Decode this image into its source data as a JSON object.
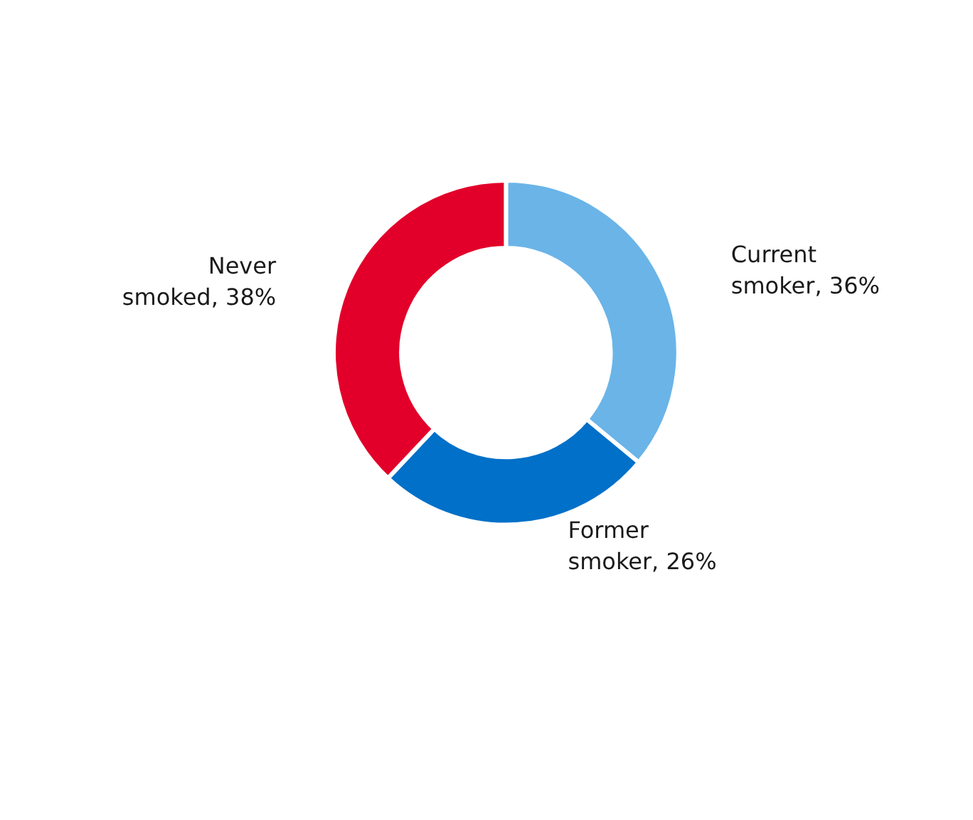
{
  "chart_data": {
    "type": "donut",
    "categories": [
      "Current smoker",
      "Former smoker",
      "Never smoked"
    ],
    "values": [
      36,
      26,
      38
    ],
    "value_labels": [
      "36%",
      "26%",
      "38%"
    ],
    "colors": [
      "#6ab4e8",
      "#0070c8",
      "#e2002a"
    ],
    "legend": false
  }
}
